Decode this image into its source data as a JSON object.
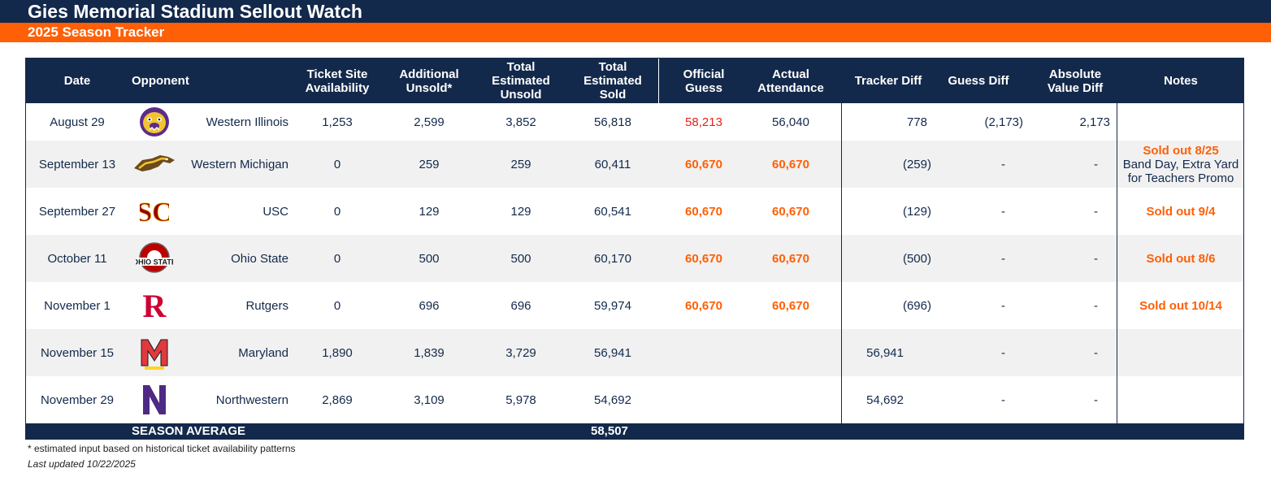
{
  "title": "Gies Memorial Stadium Sellout Watch",
  "subtitle": "2025 Season Tracker",
  "colors": {
    "navy": "#13294b",
    "orange": "#ff5f05",
    "red_value": "#e8211b"
  },
  "headers": {
    "date": "Date",
    "opponent": "Opponent",
    "ticket_site": "Ticket Site Availability",
    "additional_unsold": "Additional Unsold*",
    "total_unsold": "Total Estimated Unsold",
    "total_sold": "Total Estimated Sold",
    "official_guess": "Official Guess",
    "actual_attendance": "Actual Attendance",
    "tracker_diff": "Tracker Diff",
    "guess_diff": "Guess Diff",
    "abs_diff": "Absolute Value Diff",
    "notes": "Notes"
  },
  "rows": [
    {
      "date": "August 29",
      "logo": "western-illinois-logo",
      "opponent": "Western Illinois",
      "ticket_site": "1,253",
      "additional_unsold": "2,599",
      "total_unsold": "3,852",
      "total_sold": "56,818",
      "official_guess": "58,213",
      "actual_attendance": "56,040",
      "tracker_diff": "778",
      "guess_diff": "(2,173)",
      "abs_diff": "2,173",
      "note_head": "",
      "note_body": ""
    },
    {
      "date": "September 13",
      "logo": "western-michigan-logo",
      "opponent": "Western Michigan",
      "ticket_site": "0",
      "additional_unsold": "259",
      "total_unsold": "259",
      "total_sold": "60,411",
      "official_guess": "60,670",
      "actual_attendance": "60,670",
      "tracker_diff": "(259)",
      "guess_diff": "-",
      "abs_diff": "-",
      "note_head": "Sold out 8/25",
      "note_body": "Band Day, Extra Yard for Teachers Promo"
    },
    {
      "date": "September 27",
      "logo": "usc-logo",
      "opponent": "USC",
      "ticket_site": "0",
      "additional_unsold": "129",
      "total_unsold": "129",
      "total_sold": "60,541",
      "official_guess": "60,670",
      "actual_attendance": "60,670",
      "tracker_diff": "(129)",
      "guess_diff": "-",
      "abs_diff": "-",
      "note_head": "Sold out 9/4",
      "note_body": ""
    },
    {
      "date": "October 11",
      "logo": "ohio-state-logo",
      "opponent": "Ohio State",
      "ticket_site": "0",
      "additional_unsold": "500",
      "total_unsold": "500",
      "total_sold": "60,170",
      "official_guess": "60,670",
      "actual_attendance": "60,670",
      "tracker_diff": "(500)",
      "guess_diff": "-",
      "abs_diff": "-",
      "note_head": "Sold out 8/6",
      "note_body": ""
    },
    {
      "date": "November 1",
      "logo": "rutgers-logo",
      "opponent": "Rutgers",
      "ticket_site": "0",
      "additional_unsold": "696",
      "total_unsold": "696",
      "total_sold": "59,974",
      "official_guess": "60,670",
      "actual_attendance": "60,670",
      "tracker_diff": "(696)",
      "guess_diff": "-",
      "abs_diff": "-",
      "note_head": "Sold out 10/14",
      "note_body": ""
    },
    {
      "date": "November 15",
      "logo": "maryland-logo",
      "opponent": "Maryland",
      "ticket_site": "1,890",
      "additional_unsold": "1,839",
      "total_unsold": "3,729",
      "total_sold": "56,941",
      "official_guess": "",
      "actual_attendance": "",
      "tracker_diff": "56,941",
      "guess_diff": "-",
      "abs_diff": "-",
      "note_head": "",
      "note_body": ""
    },
    {
      "date": "November 29",
      "logo": "northwestern-logo",
      "opponent": "Northwestern",
      "ticket_site": "2,869",
      "additional_unsold": "3,109",
      "total_unsold": "5,978",
      "total_sold": "54,692",
      "official_guess": "",
      "actual_attendance": "",
      "tracker_diff": "54,692",
      "guess_diff": "-",
      "abs_diff": "-",
      "note_head": "",
      "note_body": ""
    }
  ],
  "season_average_label": "SEASON AVERAGE",
  "season_average_value": "58,507",
  "footnote": "* estimated input based on historical ticket availability patterns",
  "last_updated": "Last updated 10/22/2025"
}
